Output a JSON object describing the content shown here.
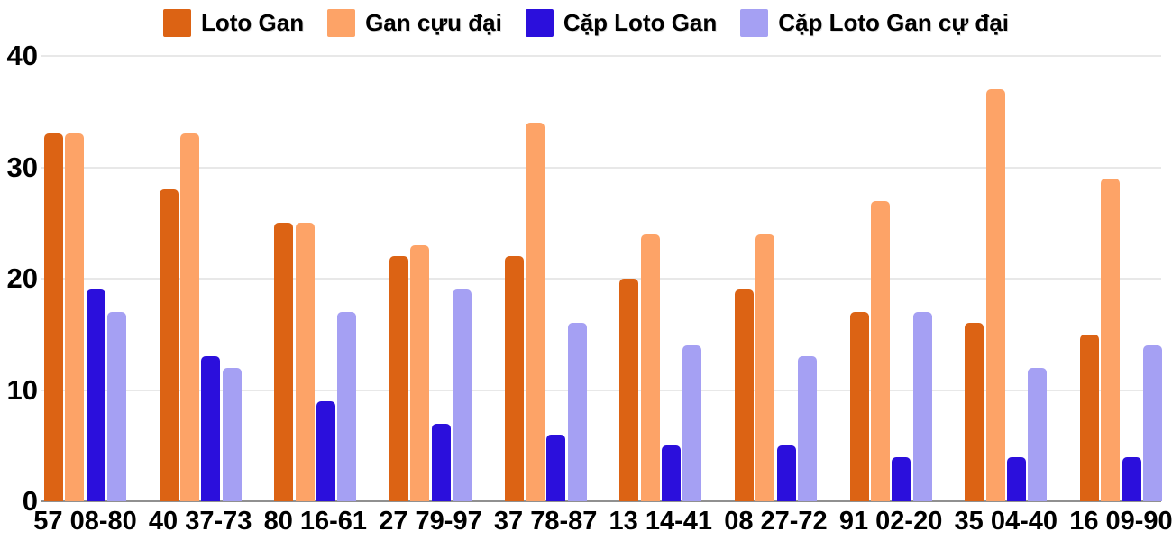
{
  "chart_data": {
    "type": "bar",
    "title": "",
    "xlabel": "",
    "ylabel": "",
    "categories": [
      "57 08-80",
      "40 37-73",
      "80 16-61",
      "27 79-97",
      "37 78-87",
      "13 14-41",
      "08 27-72",
      "91 02-20",
      "35 04-40",
      "16 09-90"
    ],
    "series": [
      {
        "name": "Loto Gan",
        "color": "#DC6314",
        "values": [
          33,
          28,
          25,
          22,
          22,
          20,
          19,
          17,
          16,
          15
        ]
      },
      {
        "name": "Gan cựu đại",
        "color": "#FDA367",
        "values": [
          33,
          33,
          25,
          23,
          34,
          24,
          24,
          27,
          37,
          29
        ]
      },
      {
        "name": "Cặp Loto Gan",
        "color": "#2B0FDC",
        "values": [
          19,
          13,
          9,
          7,
          6,
          5,
          5,
          4,
          4,
          4
        ]
      },
      {
        "name": "Cặp Loto Gan cự đại",
        "color": "#A5A0F3",
        "values": [
          17,
          12,
          17,
          19,
          16,
          14,
          13,
          17,
          12,
          14
        ]
      }
    ],
    "ylim": [
      0,
      40
    ],
    "yticks": [
      0,
      10,
      20,
      30,
      40
    ],
    "grid": true,
    "legend_position": "top",
    "colors": {
      "gridline": "#e8e8e8",
      "axis_baseline": "#909090",
      "text": "#000000",
      "background": "#ffffff"
    }
  }
}
